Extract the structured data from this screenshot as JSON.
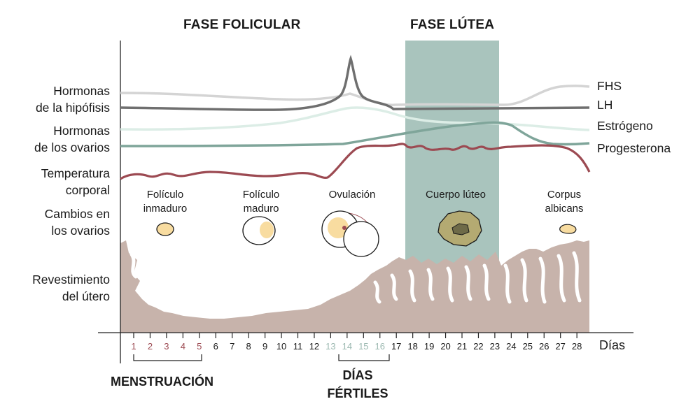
{
  "phases": {
    "follicular": "FASE FOLICULAR",
    "luteal": "FASE LÚTEA"
  },
  "row_labels": {
    "pituitary": [
      "Hormonas",
      "de la hipófisis"
    ],
    "ovarian": [
      "Hormonas",
      "de los ovarios"
    ],
    "temperature": [
      "Temperatura",
      "corporal"
    ],
    "ovary_changes": [
      "Cambios en",
      "los ovarios"
    ],
    "uterus": [
      "Revestimiento",
      "del útero"
    ]
  },
  "curve_labels": {
    "fhs": "FHS",
    "lh": "LH",
    "estrogen": "Estrógeno",
    "progesterone": "Progesterona"
  },
  "ovary_stages": {
    "immature": [
      "Folículo",
      "inmaduro"
    ],
    "mature": [
      "Folículo",
      "maduro"
    ],
    "ovulation": [
      "Ovulación"
    ],
    "corpus_luteum": [
      "Cuerpo lúteo"
    ],
    "corpus_albicans": [
      "Corpus",
      "albicans"
    ]
  },
  "axis": {
    "unit_label": "Días",
    "days": [
      "1",
      "2",
      "3",
      "4",
      "5",
      "6",
      "7",
      "8",
      "9",
      "10",
      "11",
      "12",
      "13",
      "14",
      "15",
      "16",
      "17",
      "18",
      "19",
      "20",
      "21",
      "22",
      "23",
      "24",
      "25",
      "26",
      "27",
      "28"
    ],
    "menstruation_days": [
      1,
      2,
      3,
      4,
      5
    ],
    "fertile_days": [
      13,
      14,
      15,
      16
    ]
  },
  "bottom_labels": {
    "menstruation": "MENSTRUACIÓN",
    "fertile": [
      "DÍAS",
      "FÉRTILES"
    ]
  },
  "colors": {
    "luteal_band": "#a9c4bd",
    "fhs": "#d4d4d4",
    "lh": "#6f6f6f",
    "estrogen": "#dcede6",
    "progesterone": "#7fa59a",
    "temperature": "#9c4a52",
    "uterus": "#c7b3ab",
    "follicle": "#f8dca0",
    "corpus_luteum": "#b4aa72",
    "menstruation_text": "#9c4a52",
    "fertile_text": "#9bb8b0",
    "day_text": "#1a1a1a"
  }
}
